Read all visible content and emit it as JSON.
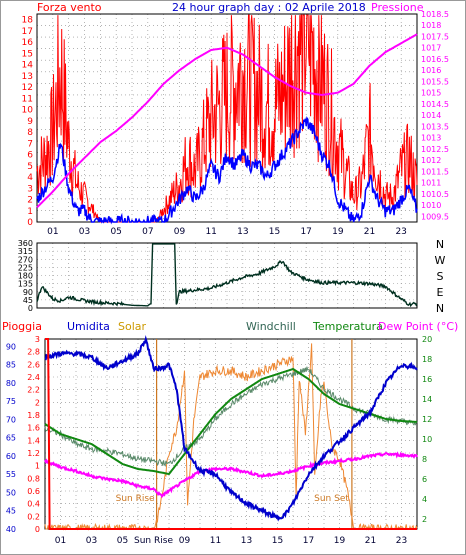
{
  "colors": {
    "wind": "#ff0000",
    "wind_avg": "#0000ff",
    "pressure": "#ff00ff",
    "direction": "#003020",
    "rain": "#ff0000",
    "humidity": "#0000cc",
    "solar": "#ee8833",
    "windchill": "#5a8a6a",
    "temperature": "#118811",
    "dewpoint": "#ff00ff",
    "grid": "#888888",
    "sunline": "#cc7722"
  },
  "chart_data": [
    {
      "type": "line",
      "title": "24 hour graph day : 02 Aprile 2018",
      "left_label": "Forza vento",
      "right_label": "Pressione",
      "x_ticks": [
        "01",
        "03",
        "05",
        "07",
        "09",
        "11",
        "13",
        "15",
        "17",
        "19",
        "21",
        "23"
      ],
      "y_left_ticks": [
        "0",
        "1",
        "2",
        "3",
        "4",
        "5",
        "6",
        "7",
        "8",
        "9",
        "10",
        "11",
        "12",
        "13",
        "14",
        "15",
        "16",
        "17",
        "18"
      ],
      "y_right_ticks": [
        "1009.5",
        "1010",
        "1010.5",
        "1011",
        "1011.5",
        "1012",
        "1012.5",
        "1013",
        "1013.5",
        "1014",
        "1014.5",
        "1015",
        "1015.5",
        "1016",
        "1016.5",
        "1017",
        "1017.5",
        "1018",
        "1018.5"
      ],
      "ylim_left": [
        0,
        18.5
      ],
      "ylim_right": [
        1009.25,
        1018.5
      ],
      "x_range_hours": [
        0,
        24
      ],
      "series": [
        {
          "name": "Forza vento",
          "kind": "gust",
          "hours": [
            0,
            0.5,
            1,
            1.5,
            2,
            2.5,
            3,
            3.5,
            4,
            5,
            6,
            7,
            7.5,
            8,
            8.5,
            9,
            9.5,
            10,
            10.5,
            11,
            11.5,
            12,
            12.5,
            13,
            13.5,
            14,
            14.5,
            15,
            15.5,
            16,
            16.5,
            17,
            17.5,
            18,
            18.5,
            19,
            19.5,
            20,
            20.5,
            21,
            21.5,
            22,
            22.5,
            23,
            23.5,
            24
          ],
          "values": [
            4,
            5,
            7,
            12,
            6,
            3,
            2,
            1,
            0,
            0,
            0,
            0,
            0,
            1,
            2,
            3,
            5,
            4,
            6,
            8,
            9,
            10,
            11,
            12,
            11,
            10,
            9,
            9,
            10,
            12,
            14,
            15,
            13,
            11,
            9,
            6,
            4,
            2,
            3,
            7,
            4,
            2,
            2,
            4,
            5,
            3
          ]
        },
        {
          "name": "",
          "kind": "avg",
          "hours": [
            0,
            0.5,
            1,
            1.5,
            2,
            2.5,
            3,
            3.5,
            4,
            5,
            6,
            7,
            7.5,
            8,
            8.5,
            9,
            9.5,
            10,
            10.5,
            11,
            11.5,
            12,
            12.5,
            13,
            13.5,
            14,
            14.5,
            15,
            15.5,
            16,
            16.5,
            17,
            17.5,
            18,
            18.5,
            19,
            19.5,
            20,
            20.5,
            21,
            21.5,
            22,
            22.5,
            23,
            23.5,
            24
          ],
          "values": [
            2,
            3,
            4,
            7,
            3,
            1,
            1,
            0,
            0,
            0,
            0,
            0,
            0,
            0,
            1,
            2,
            3,
            2,
            3,
            5,
            4,
            6,
            5,
            6,
            5,
            5,
            4,
            5,
            6,
            7,
            8,
            9,
            8,
            6,
            5,
            2,
            1,
            0,
            1,
            4,
            2,
            1,
            1,
            2,
            3,
            1
          ]
        },
        {
          "name": "Pressione",
          "kind": "pressure",
          "hours": [
            0,
            1,
            2,
            3,
            4,
            5,
            6,
            7,
            8,
            9,
            10,
            11,
            12,
            13,
            14,
            15,
            16,
            17,
            18,
            19,
            20,
            21,
            22,
            23,
            23.5,
            24
          ],
          "values": [
            1009.9,
            1010.6,
            1011.4,
            1012.1,
            1012.8,
            1013.3,
            1013.9,
            1014.6,
            1015.4,
            1016.0,
            1016.5,
            1016.9,
            1017.0,
            1016.7,
            1016.2,
            1015.7,
            1015.3,
            1015.0,
            1014.9,
            1015.0,
            1015.4,
            1016.2,
            1016.8,
            1017.2,
            1017.4,
            1017.6
          ]
        }
      ]
    },
    {
      "type": "line",
      "title": "",
      "y_ticks": [
        "0",
        "45",
        "90",
        "135",
        "180",
        "225",
        "270",
        "315",
        "360"
      ],
      "right_labels": [
        "N",
        "W",
        "S",
        "E",
        "N"
      ],
      "ylim": [
        0,
        360
      ],
      "series": [
        {
          "name": "",
          "hours": [
            0,
            0.3,
            1,
            1.5,
            2,
            2.5,
            3,
            4,
            5,
            6,
            7,
            7.2,
            7.3,
            8.7,
            8.8,
            9,
            10,
            11,
            12,
            13,
            14,
            15,
            15.5,
            16,
            17,
            18,
            19,
            20,
            21,
            22,
            23,
            23.5,
            24
          ],
          "values": [
            40,
            120,
            50,
            40,
            60,
            50,
            40,
            30,
            25,
            15,
            12,
            30,
            355,
            355,
            20,
            90,
            100,
            110,
            140,
            170,
            190,
            230,
            260,
            200,
            160,
            140,
            140,
            140,
            135,
            120,
            50,
            20,
            25
          ]
        }
      ]
    },
    {
      "type": "line",
      "title": "",
      "legend": [
        "Pioggia",
        "Umidita",
        "Solar",
        "Windchill",
        "Temperatura",
        "Dew Point (°C)"
      ],
      "y_rain_ticks": [
        "0",
        "0.2",
        "0.4",
        "0.6",
        "0.8",
        "1",
        "1.2",
        "1.4",
        "1.6",
        "1.8",
        "2",
        "2.2",
        "2.4",
        "2.6",
        "2.8",
        "3"
      ],
      "y_humidity_ticks": [
        "40",
        "45",
        "50",
        "55",
        "60",
        "65",
        "70",
        "75",
        "80",
        "85",
        "90"
      ],
      "y_temp_ticks": [
        "2",
        "4",
        "6",
        "8",
        "10",
        "12",
        "14",
        "16",
        "18",
        "20"
      ],
      "ylim_rain": [
        0,
        3
      ],
      "ylim_humidity": [
        40,
        92
      ],
      "ylim_temp": [
        1,
        20
      ],
      "sun_rise_label": "Sun Rise",
      "sun_set_label": "Sun Set",
      "sun_rise_hour": 7.2,
      "sun_set_hour": 19.8,
      "series": [
        {
          "name": "Pioggia",
          "hours": [
            0,
            0.2,
            0.3,
            24
          ],
          "values": [
            3,
            3,
            0,
            0
          ]
        },
        {
          "name": "Umidita",
          "hours": [
            0,
            1,
            2,
            3,
            4,
            5,
            6,
            6.5,
            7,
            7.5,
            8,
            8.5,
            9,
            10,
            11,
            12,
            13,
            14,
            15,
            15.5,
            16,
            17,
            18,
            19,
            20,
            21,
            22,
            23,
            24
          ],
          "values": [
            87,
            88,
            88,
            87,
            84,
            86,
            88,
            92,
            84,
            84,
            85,
            78,
            62,
            56,
            55,
            50,
            47,
            45,
            43,
            44,
            47,
            55,
            60,
            64,
            68,
            72,
            80,
            85,
            84
          ]
        },
        {
          "name": "Solar",
          "hours": [
            0,
            7,
            7.3,
            7.6,
            8,
            8.5,
            9,
            9.2,
            9.6,
            10,
            11,
            12,
            13,
            14,
            15,
            16,
            16.2,
            16.4,
            16.8,
            17.2,
            17.4,
            17.8,
            18,
            18.5,
            19,
            19.5,
            19.8,
            20
          ],
          "values": [
            0,
            0,
            0.2,
            0.6,
            1.2,
            1.6,
            2.5,
            0.4,
            1.7,
            2.4,
            2.5,
            2.5,
            2.4,
            2.5,
            2.6,
            2.7,
            0.5,
            2.4,
            1.5,
            2.9,
            0.8,
            2.1,
            2.3,
            1.3,
            1.1,
            0.6,
            0.2,
            0
          ]
        },
        {
          "name": "Windchill",
          "hours": [
            0,
            1,
            2,
            3,
            4,
            5,
            6,
            7,
            8,
            9,
            10,
            11,
            12,
            13,
            14,
            15,
            16,
            17,
            18,
            19,
            20,
            21,
            22,
            23,
            24
          ],
          "values": [
            11,
            10.5,
            9.5,
            9,
            8.8,
            8.5,
            8,
            7.8,
            7.5,
            9,
            10,
            12,
            13.5,
            14.5,
            15.5,
            16,
            16.5,
            17,
            15,
            14,
            13,
            12.5,
            12,
            11.8,
            11.5
          ]
        },
        {
          "name": "Temperatura",
          "hours": [
            0,
            1,
            2,
            3,
            4,
            5,
            6,
            7,
            8,
            9,
            10,
            11,
            12,
            13,
            14,
            15,
            16,
            17,
            18,
            19,
            20,
            21,
            22,
            23,
            24
          ],
          "values": [
            11.5,
            10.5,
            10,
            9.5,
            8.5,
            7.5,
            7,
            6.8,
            6.5,
            8.5,
            10.5,
            12.5,
            14,
            15,
            16,
            16.5,
            17,
            16,
            14.5,
            13.5,
            13,
            12.5,
            12,
            11.8,
            11.7
          ]
        },
        {
          "name": "Dew Point (°C)",
          "hours": [
            0,
            1,
            2,
            3,
            4,
            5,
            6,
            7,
            7.5,
            8,
            9,
            10,
            11,
            12,
            13,
            14,
            15,
            16,
            17,
            18,
            19,
            20,
            21,
            22,
            23,
            24
          ],
          "values": [
            7.8,
            7.2,
            6.8,
            6.3,
            6,
            5.8,
            5.3,
            5,
            4.3,
            4.8,
            5.8,
            6.8,
            7,
            7,
            6.7,
            6.3,
            6.5,
            6.8,
            7.3,
            7.6,
            7.8,
            8,
            8.3,
            8.5,
            8.4,
            8.3
          ]
        }
      ]
    }
  ]
}
